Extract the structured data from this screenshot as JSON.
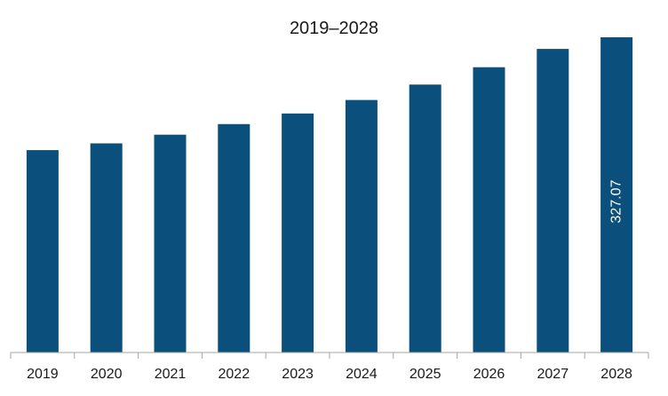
{
  "chart_data": {
    "type": "bar",
    "title": "2019–2028",
    "categories": [
      "2019",
      "2020",
      "2021",
      "2022",
      "2023",
      "2024",
      "2025",
      "2026",
      "2027",
      "2028"
    ],
    "values": [
      210.0,
      217.0,
      226.0,
      237.0,
      248.0,
      262.0,
      278.0,
      296.0,
      315.0,
      327.07
    ],
    "data_labels": [
      {
        "category": "2028",
        "text": "327.07"
      }
    ],
    "bar_color": "#0b4f7c",
    "xlabel": "",
    "ylabel": "",
    "ylim": [
      0,
      327.07
    ],
    "grid": false,
    "legend": "none"
  }
}
